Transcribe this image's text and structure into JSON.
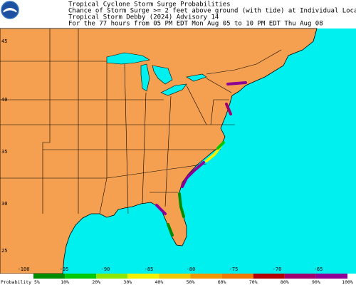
{
  "header": {
    "title": "Tropical Cyclone Storm Surge Probabilities",
    "subtitle": "Chance of Storm Surge >= 2 feet above ground (with tide) at Individual Locations",
    "storm": "Tropical Storm Debby (2024) Advisory 14",
    "period": "For the 77 hours from 05 PM EDT Mon Aug 05 to 10 PM EDT Thu Aug 08"
  },
  "map": {
    "land_color": "#f4a050",
    "water_color": "#00f0f0",
    "latitude_labels": [
      "45",
      "40",
      "35",
      "30",
      "25"
    ],
    "longitude_labels": [
      "-100",
      "-95",
      "-90",
      "-85",
      "-80",
      "-75",
      "-70",
      "-65"
    ]
  },
  "legend": {
    "label": "Probability 5%",
    "bins": [
      {
        "label": "10%",
        "color": "#008c00"
      },
      {
        "label": "20%",
        "color": "#00c800"
      },
      {
        "label": "30%",
        "color": "#8ce600"
      },
      {
        "label": "40%",
        "color": "#f0f000"
      },
      {
        "label": "50%",
        "color": "#f0c800"
      },
      {
        "label": "60%",
        "color": "#f09600"
      },
      {
        "label": "70%",
        "color": "#f07800"
      },
      {
        "label": "80%",
        "color": "#b40000"
      },
      {
        "label": "90%",
        "color": "#a0006e"
      },
      {
        "label": "100%",
        "color": "#8c0096"
      }
    ]
  }
}
